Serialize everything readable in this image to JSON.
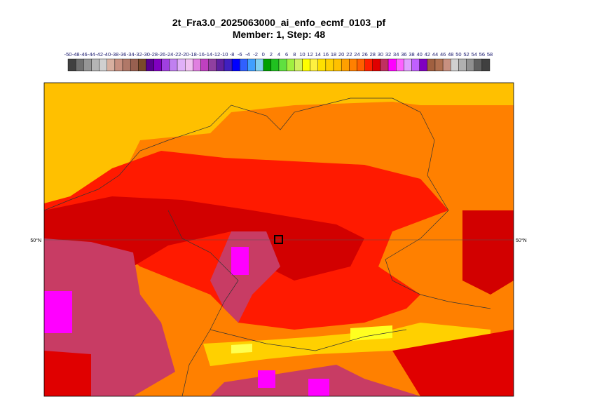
{
  "header": {
    "title": "2t_Fra3.0_2025063000_ai_enfo_ecmf_0103_pf",
    "subtitle": "Member: 1, Step: 48"
  },
  "colorbar": {
    "labels": [
      -50,
      -48,
      -46,
      -44,
      -42,
      -40,
      -38,
      -36,
      -34,
      -32,
      -30,
      -28,
      -26,
      -24,
      -22,
      -20,
      -18,
      -16,
      -14,
      -12,
      -10,
      -8,
      -6,
      -4,
      -2,
      0,
      2,
      4,
      6,
      8,
      10,
      12,
      14,
      16,
      18,
      20,
      22,
      24,
      26,
      28,
      30,
      32,
      34,
      36,
      38,
      40,
      42,
      44,
      46,
      48,
      50,
      52,
      54,
      56,
      58
    ],
    "colors": [
      "#404040",
      "#707070",
      "#959595",
      "#b5b5b5",
      "#d0d0d0",
      "#d8b0a0",
      "#c89080",
      "#b07868",
      "#986050",
      "#7a4a2a",
      "#5a0090",
      "#8000c0",
      "#a040e0",
      "#c080f0",
      "#e0b0f8",
      "#f0c0f0",
      "#e080e0",
      "#c040c0",
      "#9040a0",
      "#6020a0",
      "#4020c0",
      "#0000ff",
      "#3060ff",
      "#40a0ff",
      "#80d0f0",
      "#00a000",
      "#20c020",
      "#60e040",
      "#a0f040",
      "#d0f060",
      "#ffff00",
      "#fff040",
      "#ffe000",
      "#ffd000",
      "#ffc000",
      "#ffa000",
      "#ff8000",
      "#ff6000",
      "#ff2000",
      "#e00000",
      "#c03060",
      "#ff00ff",
      "#ff60ff",
      "#e0a0ff",
      "#c060ff",
      "#8000c0",
      "#a06040",
      "#b07050",
      "#c89080",
      "#d0d0d0",
      "#b0b0b0",
      "#909090",
      "#606060",
      "#404040"
    ]
  },
  "map": {
    "latitude_labels": [
      "50°N",
      "50°N"
    ]
  }
}
